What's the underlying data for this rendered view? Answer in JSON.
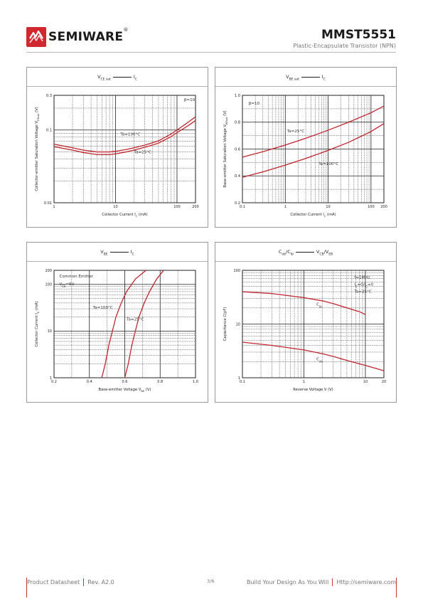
{
  "header": {
    "brand": "SEMIWARE",
    "registered": "®",
    "part_number": "MMST5551",
    "subtitle": "Plastic-Encapsulate Transistor (NPN)"
  },
  "colors": {
    "curve": "#c0262e",
    "logo": "#d0282e",
    "grid": "#222222"
  },
  "icons": {
    "logo": "semiware-logo-icon"
  },
  "chart_data": [
    {
      "type": "line",
      "title_parts": {
        "main": "V",
        "main_sub": "CE sat",
        "versus": "I",
        "versus_sub": "C"
      },
      "ylabel": "Collector-emitter Saturation Voltage V",
      "ylabel_sub": "CEsat",
      "ylabel_unit": " (V)",
      "xlabel": "Collector Current I",
      "xlabel_sub": "C",
      "xlabel_unit": " (mA)",
      "x_scale": "log",
      "y_scale": "log",
      "xlim": [
        1,
        200
      ],
      "ylim": [
        0.01,
        0.3
      ],
      "x_ticks": [
        {
          "v": 1,
          "t": "1"
        },
        {
          "v": 10,
          "t": "10"
        },
        {
          "v": 100,
          "t": "100"
        },
        {
          "v": 200,
          "t": "200"
        }
      ],
      "y_ticks": [
        {
          "v": 0.01,
          "t": "0.01"
        },
        {
          "v": 0.1,
          "t": "0.1"
        },
        {
          "v": 0.3,
          "t": "0.3"
        }
      ],
      "notes": [
        {
          "text": "β=10",
          "x": 130,
          "y": 0.25
        }
      ],
      "series": [
        {
          "name": "Ta=100°C",
          "label_at": [
            12,
            0.084
          ],
          "x": [
            1,
            2,
            3,
            5,
            8,
            10,
            15,
            20,
            30,
            50,
            80,
            100,
            150,
            200
          ],
          "y": [
            0.064,
            0.057,
            0.053,
            0.05,
            0.05,
            0.051,
            0.054,
            0.057,
            0.062,
            0.071,
            0.088,
            0.1,
            0.127,
            0.152
          ]
        },
        {
          "name": "Ta=25°C",
          "label_at": [
            20,
            0.048
          ],
          "x": [
            1,
            2,
            3,
            5,
            8,
            10,
            15,
            20,
            30,
            50,
            80,
            100,
            150,
            200
          ],
          "y": [
            0.059,
            0.053,
            0.049,
            0.046,
            0.046,
            0.047,
            0.05,
            0.053,
            0.058,
            0.066,
            0.081,
            0.092,
            0.114,
            0.135
          ]
        }
      ]
    },
    {
      "type": "line",
      "title_parts": {
        "main": "V",
        "main_sub": "BE sat",
        "versus": "I",
        "versus_sub": "C"
      },
      "ylabel": "Base-emitter Saturation Voltage V",
      "ylabel_sub": "BEsat",
      "ylabel_unit": " (V)",
      "xlabel": "Collector Current I",
      "xlabel_sub": "C",
      "xlabel_unit": " (mA)",
      "x_scale": "log",
      "y_scale": "linear",
      "xlim": [
        0.1,
        200
      ],
      "ylim": [
        0.2,
        1.0
      ],
      "x_ticks": [
        {
          "v": 0.1,
          "t": "0.1"
        },
        {
          "v": 1,
          "t": "1"
        },
        {
          "v": 10,
          "t": "10"
        },
        {
          "v": 100,
          "t": "100"
        },
        {
          "v": 200,
          "t": "200"
        }
      ],
      "y_ticks": [
        {
          "v": 0.2,
          "t": "0.2"
        },
        {
          "v": 0.4,
          "t": "0.4"
        },
        {
          "v": 0.6,
          "t": "0.6"
        },
        {
          "v": 0.8,
          "t": "0.8"
        },
        {
          "v": 1.0,
          "t": "1.0"
        }
      ],
      "notes": [
        {
          "text": "β=10",
          "x": 0.14,
          "y": 0.93
        }
      ],
      "series": [
        {
          "name": "Ta=25°C",
          "label_at": [
            1.1,
            0.725
          ],
          "x": [
            0.1,
            0.3,
            1,
            3,
            10,
            30,
            100,
            200
          ],
          "y": [
            0.54,
            0.58,
            0.63,
            0.68,
            0.74,
            0.8,
            0.87,
            0.92
          ]
        },
        {
          "name": "Ta=100°C",
          "label_at": [
            6,
            0.48
          ],
          "x": [
            0.1,
            0.3,
            1,
            3,
            10,
            30,
            100,
            200
          ],
          "y": [
            0.39,
            0.43,
            0.48,
            0.53,
            0.59,
            0.65,
            0.73,
            0.79
          ]
        }
      ]
    },
    {
      "type": "line",
      "title_parts": {
        "main": "V",
        "main_sub": "BE",
        "versus": "I",
        "versus_sub": "C"
      },
      "ylabel": "Collector Current I",
      "ylabel_sub": "C",
      "ylabel_unit": " (mA)",
      "xlabel": "Base-emitter Voltage  V",
      "xlabel_sub": "BE",
      "xlabel_unit": " (V)",
      "x_scale": "linear",
      "y_scale": "log",
      "xlim": [
        0.2,
        1.0
      ],
      "ylim": [
        1,
        200
      ],
      "x_ticks": [
        {
          "v": 0.2,
          "t": "0.2"
        },
        {
          "v": 0.4,
          "t": "0.4"
        },
        {
          "v": 0.6,
          "t": "0.6"
        },
        {
          "v": 0.8,
          "t": "0.8"
        },
        {
          "v": 1.0,
          "t": "1.0"
        }
      ],
      "y_ticks": [
        {
          "v": 1,
          "t": "1"
        },
        {
          "v": 10,
          "t": "10"
        },
        {
          "v": 100,
          "t": "100"
        },
        {
          "v": 200,
          "t": "200"
        }
      ],
      "notes": [
        {
          "text": "Common Emitter",
          "x": 0.23,
          "y": 140
        },
        {
          "text": "V",
          "sub": "CE",
          "after": "=5V",
          "x": 0.23,
          "y": 95
        }
      ],
      "series": [
        {
          "name": "Ta=100°C",
          "label_at": [
            0.42,
            30
          ],
          "x": [
            0.47,
            0.49,
            0.51,
            0.53,
            0.55,
            0.58,
            0.61,
            0.66,
            0.72
          ],
          "y": [
            1,
            2,
            5,
            10,
            20,
            40,
            70,
            130,
            200
          ]
        },
        {
          "name": "Ta=25°C",
          "label_at": [
            0.61,
            17
          ],
          "x": [
            0.6,
            0.62,
            0.64,
            0.66,
            0.68,
            0.71,
            0.74,
            0.78,
            0.82
          ],
          "y": [
            1,
            2,
            5,
            10,
            20,
            40,
            70,
            130,
            200
          ]
        }
      ]
    },
    {
      "type": "line",
      "title_parts": {
        "main": "C",
        "main_sub": "ob",
        "main_sep": "/C",
        "main_sub2": "ib",
        "versus": "V",
        "versus_sub": "CB",
        "versus_sep": "/V",
        "versus_sub2": "EB"
      },
      "ylabel": "Capacitance C(pF)",
      "xlabel": "Reverse Voltage  V (V)",
      "x_scale": "log",
      "y_scale": "log",
      "xlim": [
        0.1,
        20
      ],
      "ylim": [
        1,
        100
      ],
      "x_ticks": [
        {
          "v": 0.1,
          "t": "0.1"
        },
        {
          "v": 1,
          "t": "1"
        },
        {
          "v": 10,
          "t": "10"
        },
        {
          "v": 20,
          "t": "20"
        }
      ],
      "y_ticks": [
        {
          "v": 1,
          "t": "1"
        },
        {
          "v": 10,
          "t": "10"
        },
        {
          "v": 100,
          "t": "100"
        }
      ],
      "notes": [
        {
          "text": "f=1MHz",
          "x": 6.6,
          "y": 70
        },
        {
          "text": "I",
          "sub": "E",
          "after": "=0/I",
          "sub2": "C",
          "after2": "=0",
          "x": 6.6,
          "y": 52
        },
        {
          "text": "Ta=25°C",
          "x": 6.6,
          "y": 38
        }
      ],
      "series": [
        {
          "name": "C",
          "name_sub": "ib",
          "label_at": [
            1.6,
            22
          ],
          "x": [
            0.1,
            0.3,
            1,
            2,
            3,
            5,
            8,
            10
          ],
          "y": [
            40,
            37,
            31,
            27,
            24,
            20,
            17,
            15
          ]
        },
        {
          "name": "C",
          "name_sub": "ob",
          "label_at": [
            1.6,
            2.1
          ],
          "x": [
            0.1,
            0.3,
            1,
            2,
            3,
            5,
            10,
            20
          ],
          "y": [
            4.6,
            4.0,
            3.3,
            2.8,
            2.5,
            2.1,
            1.7,
            1.35
          ]
        }
      ]
    }
  ],
  "footer": {
    "doc_type": "Product Datasheet",
    "revision": "Rev. A2.0",
    "page": "3/6",
    "tagline": "Build Your Design As You Will",
    "url": "Http://semiware.com"
  }
}
